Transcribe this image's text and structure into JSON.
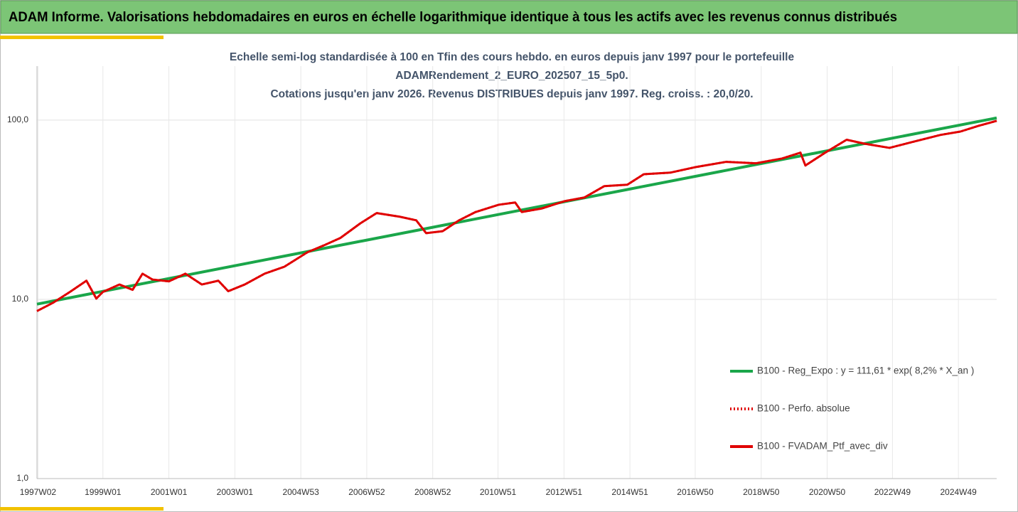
{
  "header": {
    "title": "ADAM Informe. Valorisations hebdomadaires en euros en échelle logarithmique identique à tous les actifs avec les revenus connus distribués"
  },
  "chart_data": {
    "type": "line",
    "title_lines": [
      "Echelle semi-log standardisée à 100 en Tfin des cours hebdo.  en euros depuis janv 1997 pour le portefeuille",
      "ADAMRendement_2_EURO_202507_15_5p0.",
      "Cotations  jusqu'en janv 2026. Revenus DISTRIBUES depuis janv 1997. Reg. croiss. : 20,0/20."
    ],
    "log_scale": true,
    "grid": true,
    "legend_position": "right",
    "ylim": [
      1,
      200
    ],
    "yticks": [
      {
        "value": 1,
        "label": "1,0"
      },
      {
        "value": 10,
        "label": "10,0"
      },
      {
        "value": 100,
        "label": "100,0"
      }
    ],
    "xlim": [
      1997.0,
      2026.1
    ],
    "xticks": [
      {
        "value": 1997.03,
        "label": "1997W02"
      },
      {
        "value": 1999.0,
        "label": "1999W01"
      },
      {
        "value": 2001.0,
        "label": "2001W01"
      },
      {
        "value": 2003.0,
        "label": "2003W01"
      },
      {
        "value": 2005.0,
        "label": "2004W53"
      },
      {
        "value": 2007.0,
        "label": "2006W52"
      },
      {
        "value": 2009.0,
        "label": "2008W52"
      },
      {
        "value": 2010.98,
        "label": "2010W51"
      },
      {
        "value": 2012.98,
        "label": "2012W51"
      },
      {
        "value": 2014.98,
        "label": "2014W51"
      },
      {
        "value": 2016.96,
        "label": "2016W50"
      },
      {
        "value": 2018.96,
        "label": "2018W50"
      },
      {
        "value": 2020.96,
        "label": "2020W50"
      },
      {
        "value": 2022.94,
        "label": "2022W49"
      },
      {
        "value": 2024.94,
        "label": "2024W49"
      }
    ],
    "series": [
      {
        "name": "B100 - Reg_Expo : y = 111,61 * exp( 8,2% *  X_an )",
        "color": "#1aa64a",
        "line_style": "solid",
        "x": [
          1997.0,
          2011.5,
          2026.1
        ],
        "values": [
          9.4,
          31.0,
          102.8
        ]
      },
      {
        "name": "B100 - Perfo. absolue",
        "color": "#e00000",
        "line_style": "dotted",
        "x": [
          1997.0,
          1997.5,
          1998.0,
          1998.5,
          1998.8,
          1999.0,
          1999.5,
          1999.9,
          2000.2,
          2000.5,
          2001.0,
          2001.5,
          2002.0,
          2002.5,
          2002.8,
          2003.3,
          2003.9,
          2004.5,
          2005.2,
          2005.7,
          2006.2,
          2006.8,
          2007.3,
          2008.0,
          2008.5,
          2008.8,
          2009.3,
          2009.8,
          2010.3,
          2011.0,
          2011.5,
          2011.7,
          2012.3,
          2013.0,
          2013.6,
          2014.2,
          2014.9,
          2015.4,
          2016.2,
          2017.0,
          2017.9,
          2018.8,
          2019.6,
          2020.15,
          2020.3,
          2020.9,
          2021.55,
          2022.1,
          2022.85,
          2023.5,
          2024.4,
          2025.0,
          2025.55,
          2026.1
        ],
        "values": [
          8.6,
          9.6,
          11.0,
          12.7,
          10.1,
          11.0,
          12.1,
          11.3,
          13.9,
          12.9,
          12.6,
          13.9,
          12.1,
          12.7,
          11.1,
          12.1,
          13.9,
          15.2,
          18.3,
          20.0,
          22.0,
          26.5,
          30.3,
          28.9,
          27.6,
          23.4,
          24.0,
          27.6,
          30.7,
          33.7,
          34.7,
          30.7,
          32.1,
          35.3,
          37.0,
          42.8,
          43.6,
          49.9,
          50.9,
          54.8,
          58.5,
          57.4,
          61.1,
          65.8,
          55.8,
          65.8,
          77.7,
          73.8,
          70.0,
          75.1,
          82.7,
          86.3,
          92.9,
          99.0
        ]
      },
      {
        "name": "B100 - FVADAM_Ptf_avec_div",
        "color": "#e00000",
        "line_style": "solid",
        "x": [
          1997.0,
          1997.5,
          1998.0,
          1998.5,
          1998.8,
          1999.0,
          1999.5,
          1999.9,
          2000.2,
          2000.5,
          2001.0,
          2001.5,
          2002.0,
          2002.5,
          2002.8,
          2003.3,
          2003.9,
          2004.5,
          2005.2,
          2005.7,
          2006.2,
          2006.8,
          2007.3,
          2008.0,
          2008.5,
          2008.8,
          2009.3,
          2009.8,
          2010.3,
          2011.0,
          2011.5,
          2011.7,
          2012.3,
          2013.0,
          2013.6,
          2014.2,
          2014.9,
          2015.4,
          2016.2,
          2017.0,
          2017.9,
          2018.8,
          2019.6,
          2020.15,
          2020.3,
          2020.9,
          2021.55,
          2022.1,
          2022.85,
          2023.5,
          2024.4,
          2025.0,
          2025.55,
          2026.1
        ],
        "values": [
          8.6,
          9.6,
          11.0,
          12.7,
          10.1,
          11.0,
          12.1,
          11.3,
          13.9,
          12.9,
          12.6,
          13.9,
          12.1,
          12.7,
          11.1,
          12.1,
          13.9,
          15.2,
          18.3,
          20.0,
          22.0,
          26.5,
          30.3,
          28.9,
          27.6,
          23.4,
          24.0,
          27.6,
          30.7,
          33.7,
          34.7,
          30.7,
          32.1,
          35.3,
          37.0,
          42.8,
          43.6,
          49.9,
          50.9,
          54.8,
          58.5,
          57.4,
          61.1,
          65.8,
          55.8,
          65.8,
          77.7,
          73.8,
          70.0,
          75.1,
          82.7,
          86.3,
          92.9,
          99.0
        ]
      }
    ]
  }
}
